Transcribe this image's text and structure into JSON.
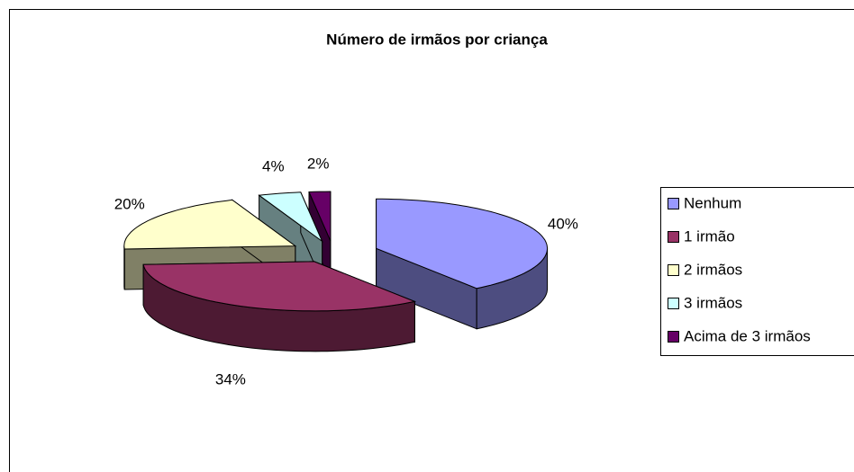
{
  "chart_data": {
    "type": "pie3d",
    "title": "Número de irmãos por criança",
    "categories": [
      "Nenhum",
      "1 irmão",
      "2 irmãos",
      "3 irmãos",
      "Acima de 3 irmãos"
    ],
    "values": [
      40,
      34,
      20,
      4,
      2
    ],
    "value_labels": [
      "40%",
      "34%",
      "20%",
      "4%",
      "2%"
    ],
    "colors": [
      "#9999FF",
      "#993366",
      "#FFFFCC",
      "#CCFFFF",
      "#660066"
    ],
    "legend": "right"
  }
}
